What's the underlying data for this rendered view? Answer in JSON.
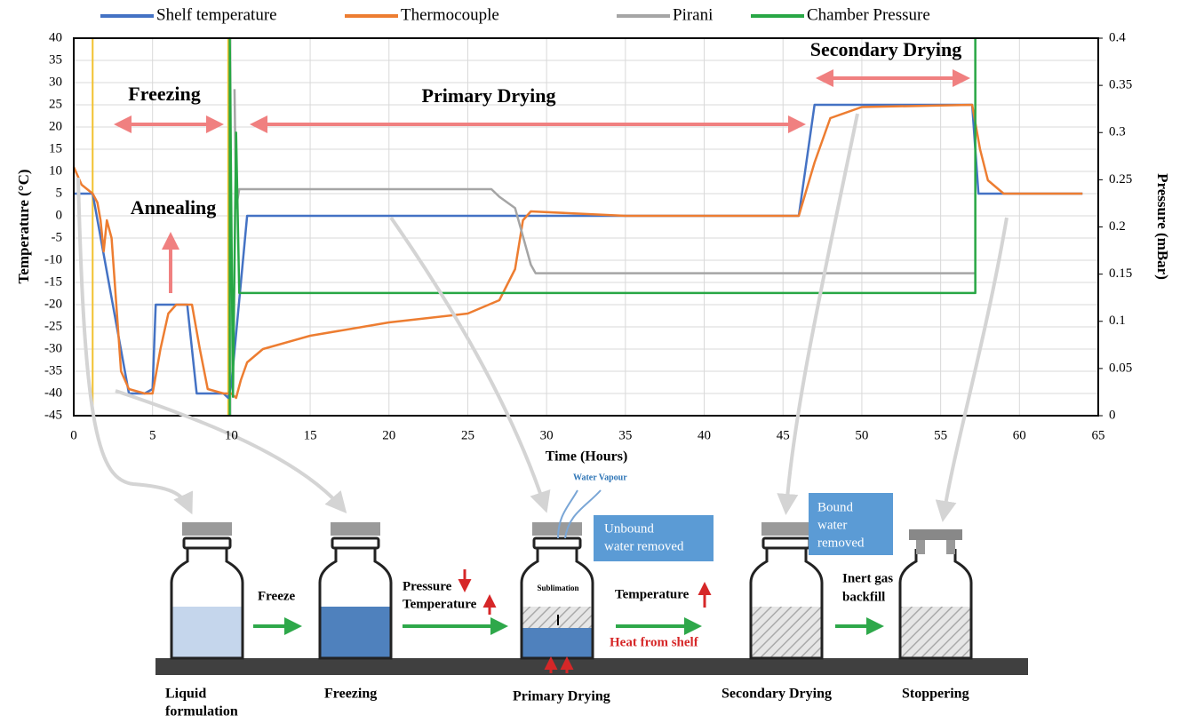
{
  "chart_data": {
    "type": "line",
    "x_label": "Time (Hours)",
    "y_label": "Temperature (°C)",
    "y2_label": "Pressure (mBar)",
    "xlim": [
      0,
      65
    ],
    "xticks": [
      0,
      5,
      10,
      15,
      20,
      25,
      30,
      35,
      40,
      45,
      50,
      55,
      60,
      65
    ],
    "ylim": [
      -45,
      40
    ],
    "yticks": [
      -45,
      -40,
      -35,
      -30,
      -25,
      -20,
      -15,
      -10,
      -5,
      0,
      5,
      10,
      15,
      20,
      25,
      30,
      35,
      40
    ],
    "y2lim": [
      0,
      0.4
    ],
    "y2ticks": [
      0,
      0.05,
      0.1,
      0.15,
      0.2,
      0.25,
      0.3,
      0.35,
      0.4
    ],
    "grid": true,
    "legend": "top",
    "series": [
      {
        "name": "Shelf temperature",
        "color": "#4472c4",
        "x": [
          0,
          1.2,
          3.5,
          4.5,
          5,
          5.2,
          7.2,
          7.8,
          9.5,
          9.8,
          10,
          11,
          46,
          47,
          57,
          57.4,
          64
        ],
        "values": [
          5,
          5,
          -40,
          -40,
          -39,
          -20,
          -20,
          -40,
          -40,
          -41,
          -38,
          0,
          0,
          25,
          25,
          5,
          5
        ]
      },
      {
        "name": "Thermocouple",
        "color": "#ed7d31",
        "x": [
          0,
          0.5,
          1.2,
          1.5,
          1.7,
          1.9,
          2.1,
          2.4,
          2.8,
          3,
          3.5,
          4.5,
          5,
          5.5,
          6,
          6.5,
          7.5,
          8,
          8.5,
          9.5,
          10,
          10.3,
          10.6,
          11,
          12,
          15,
          20,
          25,
          27,
          28,
          28.5,
          29,
          35,
          46,
          47,
          48,
          50,
          57,
          57.5,
          58,
          59,
          64
        ],
        "values": [
          11,
          7,
          5,
          3,
          -1,
          -8,
          -1,
          -5,
          -25,
          -35,
          -39,
          -40,
          -40,
          -30,
          -22,
          -20,
          -20,
          -30,
          -39,
          -40,
          -40,
          -41,
          -37,
          -33,
          -30,
          -27,
          -24,
          -22,
          -19,
          -12,
          -1,
          1,
          0,
          0,
          12,
          22,
          24.5,
          25,
          15,
          8,
          5,
          5
        ]
      },
      {
        "name": "Pirani",
        "color": "#a5a5a5",
        "axis": "y2",
        "x": [
          10.2,
          10.3,
          10.5,
          26.5,
          27,
          28,
          28.5,
          29,
          29.3,
          57.2
        ],
        "values": [
          0.346,
          0.22,
          0.24,
          0.24,
          0.232,
          0.22,
          0.19,
          0.16,
          0.151,
          0.151
        ]
      },
      {
        "name": "Chamber Pressure",
        "color": "#28a745",
        "axis": "y2",
        "x": [
          9.9,
          9.9,
          10.1,
          10.3,
          10.5,
          57.2,
          57.2
        ],
        "values": [
          0,
          0.4,
          0.02,
          0.3,
          0.13,
          0.13,
          0.4
        ]
      }
    ],
    "vlines": [
      {
        "x": 1.2,
        "color": "#f2c12e"
      },
      {
        "x": 9.8,
        "color": "#f2c12e"
      }
    ],
    "annotations": [
      "Freezing",
      "Annealing",
      "Primary Drying",
      "Secondary Drying"
    ]
  },
  "diagram": {
    "steps": [
      [
        "Liquid",
        "formulation"
      ],
      [
        "Freezing"
      ],
      [
        "Primary Drying"
      ],
      [
        "Secondary Drying"
      ],
      [
        "Stoppering"
      ]
    ],
    "transitions": {
      "freeze": "Freeze",
      "pressure": "Pressure",
      "temperature": "Temperature",
      "temperature2": "Temperature",
      "backfill": [
        "Inert gas",
        "backfill"
      ]
    },
    "sublimation": "Sublimation",
    "water_vapour": "Water Vapour",
    "heat": "Heat from shelf",
    "unbound": [
      "Unbound",
      "water removed"
    ],
    "bound": [
      "Bound",
      "water",
      "removed"
    ]
  }
}
